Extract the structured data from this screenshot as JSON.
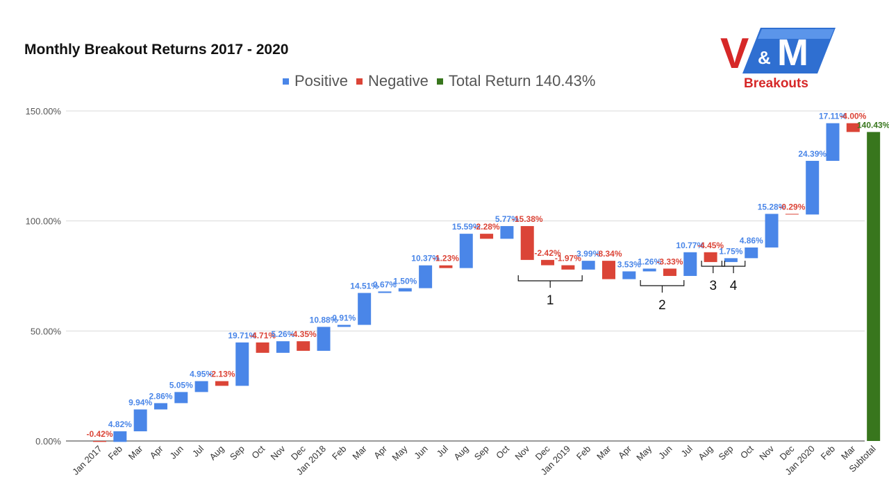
{
  "chart_data": {
    "type": "bar",
    "subtype": "waterfall",
    "title": "Monthly Breakout Returns 2017 - 2020",
    "xlabel": "",
    "ylabel": "",
    "ylim": [
      0,
      150
    ],
    "yticks": [
      0,
      50,
      100,
      150
    ],
    "ytick_labels": [
      "0.00%",
      "50.00%",
      "100.00%",
      "150.00%"
    ],
    "grid": true,
    "legend_position": "top",
    "legend": [
      {
        "name": "Positive",
        "color": "#4a86e8"
      },
      {
        "name": "Negative",
        "color": "#db4437"
      },
      {
        "name": "Total Return 140.43%",
        "color": "#38761d"
      }
    ],
    "categories": [
      "Jan 2017",
      "Feb",
      "Mar",
      "Apr",
      "Jun",
      "Jul",
      "Aug",
      "Sep",
      "Oct",
      "Nov",
      "Dec",
      "Jan 2018",
      "Feb",
      "Mar",
      "Apr",
      "May",
      "Jun",
      "Jul",
      "Aug",
      "Sep",
      "Oct",
      "Nov",
      "Dec",
      "Jan 2019",
      "Feb",
      "Mar",
      "Apr",
      "May",
      "Jun",
      "Jul",
      "Aug",
      "Sep",
      "Oct",
      "Nov",
      "Dec",
      "Jan 2020",
      "Feb",
      "Mar",
      "Subtotal"
    ],
    "values": [
      -0.42,
      4.82,
      9.94,
      2.86,
      5.05,
      4.95,
      -2.13,
      19.71,
      -4.71,
      5.26,
      -4.35,
      10.88,
      0.91,
      14.51,
      0.67,
      1.5,
      10.37,
      -1.23,
      15.59,
      -2.28,
      5.77,
      -15.38,
      -2.42,
      -1.97,
      3.99,
      -8.34,
      3.53,
      1.26,
      -3.33,
      10.77,
      -4.45,
      1.75,
      4.86,
      15.28,
      -0.29,
      24.39,
      17.11,
      -4.0,
      140.43
    ],
    "labels": [
      "-0.42%",
      "4.82%",
      "9.94%",
      "2.86%",
      "5.05%",
      "4.95%",
      "-2.13%",
      "19.71%",
      "-4.71%",
      "5.26%",
      "-4.35%",
      "10.88%",
      "0.91%",
      "14.51%",
      "0.67%",
      "1.50%",
      "10.37%",
      "-1.23%",
      "15.59%",
      "-2.28%",
      "5.77%",
      "-15.38%",
      "-2.42%",
      "-1.97%",
      "3.99%",
      "-8.34%",
      "3.53%",
      "1.26%",
      "-3.33%",
      "10.77%",
      "-4.45%",
      "1.75%",
      "4.86%",
      "15.28%",
      "-0.29%",
      "24.39%",
      "17.11%",
      "-4.00%",
      "140.43%"
    ],
    "annotations": [
      {
        "label": "1",
        "from_index": 21,
        "to_index": 24
      },
      {
        "label": "2",
        "from_index": 27,
        "to_index": 29
      },
      {
        "label": "3",
        "from_index": 30,
        "to_index": 31
      },
      {
        "label": "4",
        "from_index": 31,
        "to_index": 32
      }
    ]
  },
  "logo": {
    "letters_v": "V",
    "letters_amp": "&",
    "letters_m": "M",
    "word": "Breakouts"
  }
}
